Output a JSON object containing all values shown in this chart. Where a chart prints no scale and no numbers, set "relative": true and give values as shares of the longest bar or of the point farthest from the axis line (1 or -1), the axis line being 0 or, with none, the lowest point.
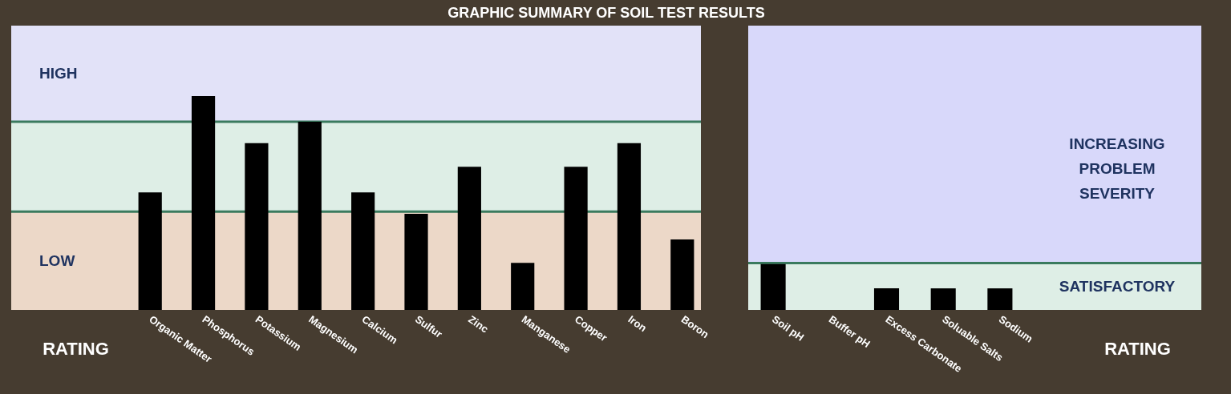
{
  "chart_data": [
    {
      "type": "bar",
      "title": "GRAPHIC SUMMARY OF SOIL TEST RESULTS",
      "ylabel": "RATING",
      "relative": true,
      "color": "#000000",
      "categories": [
        "Organic Matter",
        "Phosphorus",
        "Potassium",
        "Magnesium",
        "Calcium",
        "Sulfur",
        "Zinc",
        "Manganese",
        "Copper",
        "Iron",
        "Boron"
      ],
      "values": [
        0.55,
        1,
        0.78,
        0.88,
        0.55,
        0.45,
        0.67,
        0.22,
        0.67,
        0.78,
        0.33
      ],
      "bands": [
        {
          "axis": "y",
          "from": 0,
          "to": 0.46,
          "label": "LOW",
          "color": "#ecd8c8"
        },
        {
          "axis": "y",
          "from": 0.46,
          "to": 0.88,
          "label": null,
          "color": "#deeee6"
        },
        {
          "axis": "y",
          "from": 0.88,
          "to": 1.33,
          "label": "HIGH",
          "color": "#e2e2f8"
        }
      ],
      "ref_lines": [
        {
          "axis": "y",
          "value": 0.46,
          "color": "#3a7a5e"
        },
        {
          "axis": "y",
          "value": 0.88,
          "color": "#3a7a5e"
        }
      ]
    },
    {
      "type": "bar",
      "ylabel": "RATING",
      "relative": true,
      "color": "#000000",
      "categories": [
        "Soil pH",
        "Buffer pH",
        "Excess Carbonate",
        "Soluable Salts",
        "Sodium"
      ],
      "values": [
        1,
        null,
        0.47,
        0.47,
        0.47
      ],
      "bands": [
        {
          "axis": "y",
          "from": 0,
          "to": 1.02,
          "label": "SATISFACTORY",
          "color": "#deeee6"
        },
        {
          "axis": "y",
          "from": 1.02,
          "to": 6.2,
          "label": "INCREASING\nPROBLEM\nSEVERITY",
          "color": "#d8d8fa"
        }
      ],
      "ref_lines": [
        {
          "axis": "y",
          "value": 1.02,
          "color": "#3a7a5e"
        }
      ]
    }
  ]
}
